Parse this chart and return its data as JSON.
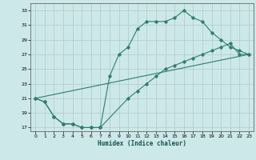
{
  "xlabel": "Humidex (Indice chaleur)",
  "bg_color": "#cce8e8",
  "grid_color": "#b0c8c8",
  "line_color": "#2e7d6e",
  "xlim": [
    -0.5,
    23.5
  ],
  "ylim": [
    16.5,
    34
  ],
  "xticks": [
    0,
    1,
    2,
    3,
    4,
    5,
    6,
    7,
    8,
    9,
    10,
    11,
    12,
    13,
    14,
    15,
    16,
    17,
    18,
    19,
    20,
    21,
    22,
    23
  ],
  "yticks": [
    17,
    19,
    21,
    23,
    25,
    27,
    29,
    31,
    33
  ],
  "line1_x": [
    0,
    1,
    2,
    3,
    4,
    5,
    6,
    7,
    8,
    9,
    10,
    11,
    12,
    13,
    14,
    15,
    16,
    17,
    18,
    19,
    20,
    21,
    22,
    23
  ],
  "line1_y": [
    21,
    20.5,
    18.5,
    17.5,
    17.5,
    17,
    17,
    17,
    24,
    27,
    28,
    30.5,
    31.5,
    31.5,
    31.5,
    32,
    33,
    32,
    31.5,
    30,
    29,
    28,
    27.5,
    27
  ],
  "line2_x": [
    0,
    1,
    2,
    3,
    4,
    5,
    6,
    7,
    10,
    11,
    12,
    13,
    14,
    15,
    16,
    17,
    18,
    19,
    20,
    21,
    22,
    23
  ],
  "line2_y": [
    21,
    20.5,
    18.5,
    17.5,
    17.5,
    17,
    17,
    17,
    21,
    22,
    23,
    24,
    25,
    25.5,
    26,
    26.5,
    27,
    27.5,
    28,
    28.5,
    27,
    27
  ],
  "line3_x": [
    0,
    23
  ],
  "line3_y": [
    21,
    27
  ]
}
